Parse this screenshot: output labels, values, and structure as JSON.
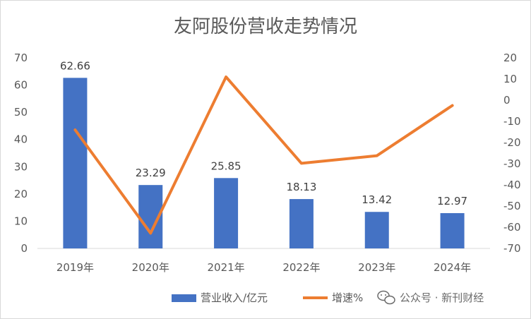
{
  "chart_data": {
    "type": "bar",
    "title": "友阿股份营收走势情况",
    "categories": [
      "2019年",
      "2020年",
      "2021年",
      "2022年",
      "2023年",
      "2024年"
    ],
    "series": [
      {
        "name": "营业收入/亿元",
        "type": "bar",
        "axis": "left",
        "values": [
          62.66,
          23.29,
          25.85,
          18.13,
          13.42,
          12.97
        ],
        "color": "#4472C4",
        "data_labels": [
          "62.66",
          "23.29",
          "25.85",
          "18.13",
          "13.42",
          "12.97"
        ]
      },
      {
        "name": "增速%",
        "type": "line",
        "axis": "right",
        "values": [
          -14,
          -62.8,
          11,
          -29.8,
          -26.2,
          -2.5
        ],
        "color": "#ED7D31"
      }
    ],
    "y_left": {
      "min": 0,
      "max": 70,
      "step": 10,
      "ticks": [
        "70",
        "60",
        "50",
        "40",
        "30",
        "20",
        "10",
        "0"
      ]
    },
    "y_right": {
      "min": -70,
      "max": 20,
      "step": 10,
      "ticks": [
        "20",
        "10",
        "0",
        "-10",
        "-20",
        "-30",
        "-40",
        "-50",
        "-60",
        "-70"
      ]
    },
    "grid": false,
    "legend_position": "bottom"
  },
  "watermark": {
    "icon": "wechat-icon",
    "text": "公众号 · 新刊财经"
  }
}
